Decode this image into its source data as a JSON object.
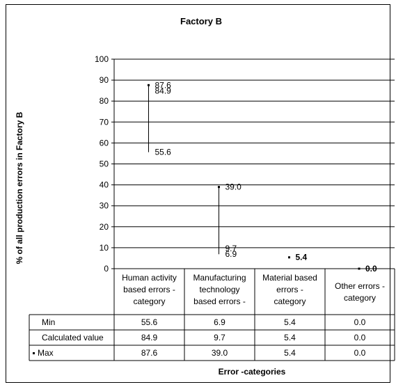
{
  "chart_data": {
    "type": "table",
    "title": "Factory B",
    "ylabel": "% of all production errors in Factory B",
    "xlabel": "Error -categories",
    "ylim": [
      0,
      100
    ],
    "yticks": [
      "0",
      "10",
      "20",
      "30",
      "40",
      "50",
      "60",
      "70",
      "80",
      "90",
      "100"
    ],
    "categories": [
      [
        "Human activity",
        "based errors -",
        "category"
      ],
      [
        "Manufacturing",
        "technology",
        "based errors -"
      ],
      [
        "Material based",
        "errors -",
        "category"
      ],
      [
        "Other errors -",
        "category"
      ]
    ],
    "series": [
      {
        "name": "Min",
        "values": [
          55.6,
          6.9,
          5.4,
          0.0
        ]
      },
      {
        "name": "Calculated value",
        "values": [
          84.9,
          9.7,
          5.4,
          0.0
        ]
      },
      {
        "name": "Max",
        "values": [
          87.6,
          39.0,
          5.4,
          0.0
        ]
      }
    ],
    "table_values": [
      [
        "55.6",
        "6.9",
        "5.4",
        "0.0"
      ],
      [
        "84.9",
        "9.7",
        "5.4",
        "0.0"
      ],
      [
        "87.6",
        "39.0",
        "5.4",
        "0.0"
      ]
    ],
    "point_labels": [
      {
        "min": "55.6",
        "calc": "84.9",
        "max": "87.6"
      },
      {
        "min": "6.9",
        "calc": "9.7",
        "max": "39.0"
      },
      {
        "min": "",
        "calc": "",
        "max": "5.4"
      },
      {
        "min": "",
        "calc": "",
        "max": "0.0"
      }
    ],
    "grid": true,
    "legend": "table-left"
  }
}
